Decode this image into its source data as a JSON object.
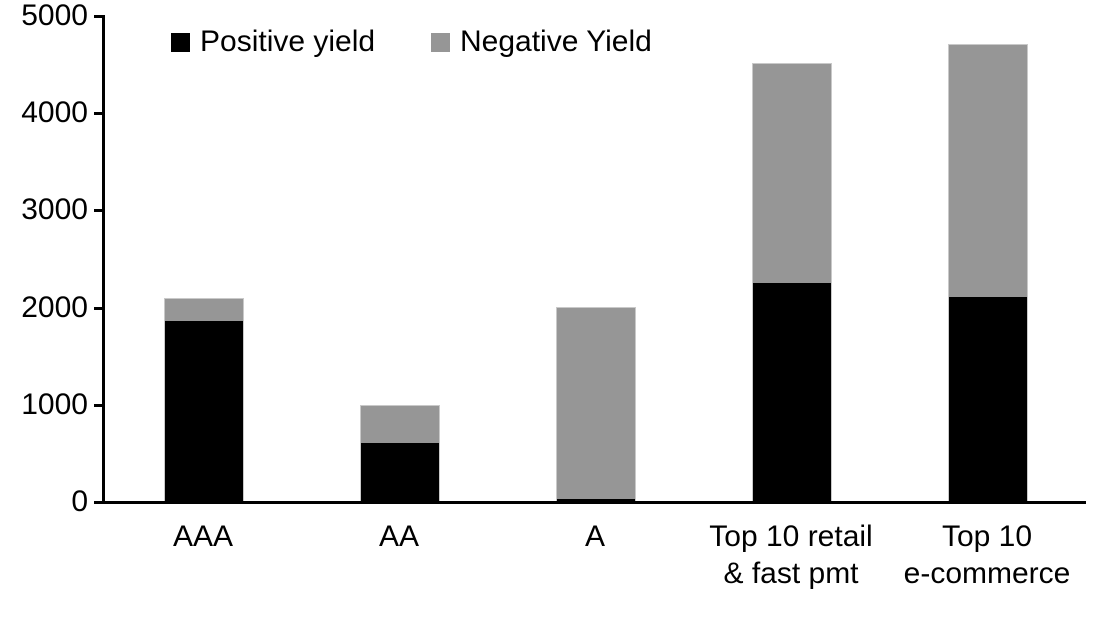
{
  "chart_data": {
    "type": "bar",
    "stacked": true,
    "title": "",
    "xlabel": "",
    "ylabel": "",
    "grid": false,
    "legend_position": "top",
    "ylim": [
      0,
      5000
    ],
    "yticks": [
      0,
      1000,
      2000,
      3000,
      4000,
      5000
    ],
    "categories": [
      "AAA",
      "AA",
      "A",
      "Top 10 retail\n& fast pmt",
      "Top 10\ne-commerce"
    ],
    "series": [
      {
        "name": "Positive yield",
        "color": "#000000",
        "values": [
          1870,
          620,
          45,
          2260,
          2115
        ]
      },
      {
        "name": "Negative Yield",
        "color": "#969696",
        "values": [
          230,
          385,
          1970,
          2250,
          2590
        ]
      }
    ],
    "stack_totals": [
      2100,
      1005,
      2015,
      4510,
      4705
    ]
  },
  "colors": {
    "axis": "#000000",
    "bar_outline": "#c9c9c9",
    "background": "#ffffff"
  }
}
